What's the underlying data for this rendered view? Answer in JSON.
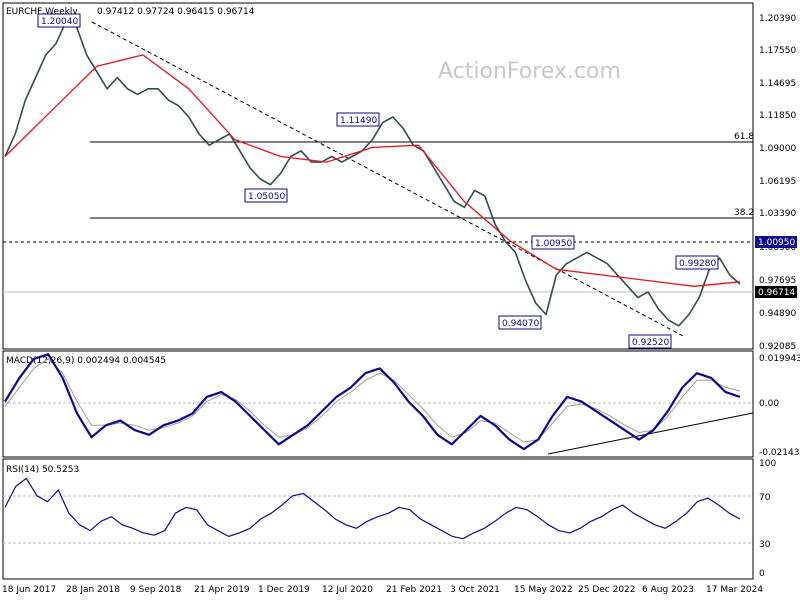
{
  "header": {
    "symbol": "EURCHF,Weekly",
    "ohlc": "0.97412 0.97724 0.96415 0.96714"
  },
  "watermark": "ActionForex.com",
  "colors": {
    "price": "#2f4f4f",
    "ma": "#e8131b",
    "macd": "#0b0b8c",
    "signal": "#9e9e9e",
    "rsi": "#0b0b8c",
    "price_tag": "#000000",
    "level_tag": "#0b0b8c"
  },
  "chart_data": [
    {
      "type": "line",
      "title": "EURCHF,Weekly",
      "ylim": [
        0.9112,
        1.2142
      ],
      "y_ticks": [
        "1.20390",
        "1.17550",
        "1.14695",
        "1.11850",
        "1.09000",
        "1.06195",
        "1.03390",
        "1.00500",
        "0.97695",
        "0.94890",
        "0.92085"
      ],
      "x_ticks": [
        "18 Jun 2017",
        "28 Jan 2018",
        "9 Sep 2018",
        "21 Apr 2019",
        "1 Dec 2019",
        "12 Jul 2020",
        "21 Feb 2021",
        "3 Oct 2021",
        "15 May 2022",
        "25 Dec 2022",
        "6 Aug 2023",
        "17 Mar 2024"
      ],
      "series": [
        {
          "values": [
            1.08,
            1.1,
            1.13,
            1.15,
            1.17,
            1.18,
            1.2,
            1.195,
            1.17,
            1.155,
            1.14,
            1.15,
            1.14,
            1.135,
            1.14,
            1.14,
            1.13,
            1.125,
            1.115,
            1.1,
            1.09,
            1.095,
            1.1,
            1.085,
            1.07,
            1.06,
            1.055,
            1.065,
            1.08,
            1.085,
            1.075,
            1.075,
            1.08,
            1.075,
            1.08,
            1.085,
            1.095,
            1.11,
            1.115,
            1.105,
            1.09,
            1.085,
            1.07,
            1.055,
            1.04,
            1.035,
            1.05,
            1.045,
            1.02,
            1.005,
            0.995,
            0.97,
            0.95,
            0.94,
            0.975,
            0.985,
            0.99,
            0.995,
            0.99,
            0.985,
            0.975,
            0.965,
            0.955,
            0.96,
            0.945,
            0.935,
            0.93,
            0.94,
            0.955,
            0.98,
            0.99,
            0.975,
            0.967
          ]
        },
        {
          "values": [
            1.08,
            1.12,
            1.16,
            1.17,
            1.14,
            1.095,
            1.08,
            1.075,
            1.088,
            1.09,
            1.04,
            1.005,
            0.98,
            0.975,
            0.97,
            0.965,
            0.969
          ]
        }
      ],
      "annotations": [
        {
          "label": "1.20040",
          "value": 1.2004
        },
        {
          "label": "1.05050",
          "value": 1.0505
        },
        {
          "label": "1.11490",
          "value": 1.1149
        },
        {
          "label": "1.00950",
          "value": 1.0095
        },
        {
          "label": "0.94070",
          "value": 0.9407
        },
        {
          "label": "0.92520",
          "value": 0.9252
        },
        {
          "label": "0.99280",
          "value": 0.9928
        }
      ],
      "fib_levels": [
        {
          "label": "61.8",
          "value": 1.0907
        },
        {
          "label": "38.2",
          "value": 1.0321
        }
      ],
      "reference_line": {
        "label": "1.00950",
        "value": 1.0095
      },
      "last_price": {
        "label": "0.96714",
        "value": 0.96714
      }
    },
    {
      "type": "line",
      "title": "MACD(12,26,9) 0.002494 0.004545",
      "ylim": [
        -0.0225,
        0.0205
      ],
      "y_ticks": [
        "0.019943",
        "0.00",
        "-0.021434"
      ],
      "series": [
        {
          "values": [
            0.0,
            0.01,
            0.018,
            0.02,
            0.01,
            -0.005,
            -0.015,
            -0.01,
            -0.008,
            -0.012,
            -0.014,
            -0.01,
            -0.008,
            -0.005,
            0.002,
            0.004,
            0.0,
            -0.006,
            -0.012,
            -0.018,
            -0.014,
            -0.01,
            -0.004,
            0.002,
            0.006,
            0.012,
            0.014,
            0.008,
            0.0,
            -0.006,
            -0.014,
            -0.018,
            -0.012,
            -0.006,
            -0.01,
            -0.016,
            -0.02,
            -0.016,
            -0.006,
            0.002,
            0.0,
            -0.004,
            -0.008,
            -0.012,
            -0.016,
            -0.012,
            -0.004,
            0.006,
            0.012,
            0.01,
            0.004,
            0.002
          ]
        },
        {
          "values": [
            -0.002,
            0.006,
            0.014,
            0.018,
            0.012,
            0.0,
            -0.01,
            -0.01,
            -0.009,
            -0.01,
            -0.012,
            -0.011,
            -0.009,
            -0.006,
            0.0,
            0.003,
            0.001,
            -0.004,
            -0.01,
            -0.015,
            -0.014,
            -0.011,
            -0.006,
            0.0,
            0.004,
            0.009,
            0.012,
            0.009,
            0.003,
            -0.003,
            -0.01,
            -0.015,
            -0.013,
            -0.008,
            -0.009,
            -0.013,
            -0.017,
            -0.016,
            -0.009,
            -0.002,
            -0.001,
            -0.003,
            -0.006,
            -0.01,
            -0.013,
            -0.012,
            -0.006,
            0.002,
            0.009,
            0.009,
            0.006,
            0.0045
          ]
        }
      ]
    },
    {
      "type": "line",
      "title": "RSI(14) 50.5253",
      "ylim": [
        0,
        100
      ],
      "y_ticks": [
        "100",
        "70",
        "30",
        "0"
      ],
      "series": [
        {
          "values": [
            60,
            78,
            85,
            70,
            65,
            75,
            55,
            45,
            40,
            48,
            52,
            45,
            42,
            38,
            36,
            40,
            55,
            60,
            58,
            45,
            40,
            35,
            38,
            42,
            50,
            55,
            62,
            70,
            72,
            65,
            58,
            50,
            45,
            42,
            48,
            52,
            55,
            60,
            58,
            50,
            45,
            40,
            35,
            33,
            38,
            42,
            48,
            55,
            60,
            58,
            52,
            45,
            40,
            38,
            42,
            48,
            52,
            58,
            62,
            55,
            50,
            45,
            42,
            48,
            55,
            65,
            68,
            62,
            55,
            50
          ]
        }
      ]
    }
  ]
}
